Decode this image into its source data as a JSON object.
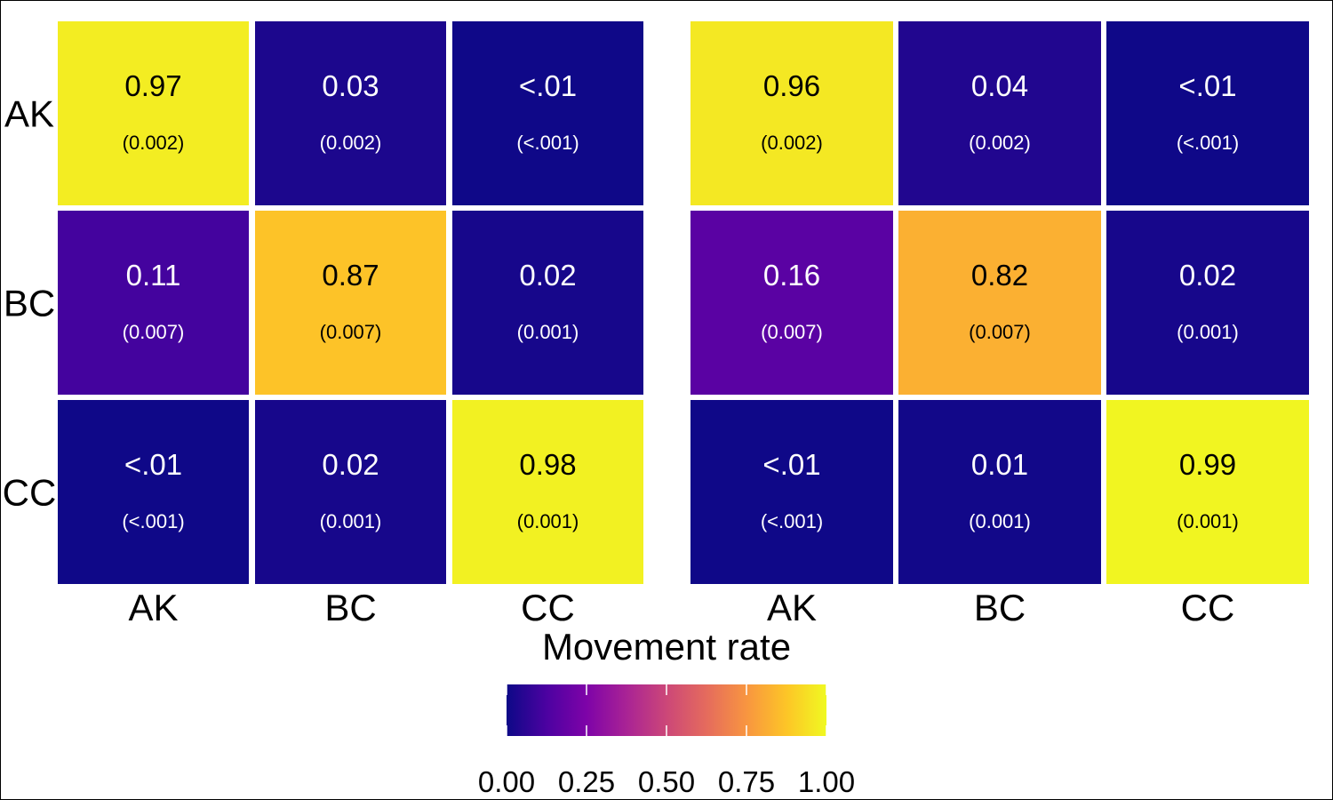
{
  "chart_data": {
    "type": "heatmap",
    "xlabel": "Movement rate",
    "row_labels": [
      "AK",
      "BC",
      "CC"
    ],
    "col_labels": [
      "AK",
      "BC",
      "CC"
    ],
    "panels": [
      {
        "values": [
          [
            0.97,
            0.03,
            0.004
          ],
          [
            0.11,
            0.87,
            0.02
          ],
          [
            0.004,
            0.02,
            0.98
          ]
        ],
        "value_labels": [
          [
            "0.97",
            "0.03",
            "<.01"
          ],
          [
            "0.11",
            "0.87",
            "0.02"
          ],
          [
            "<.01",
            "0.02",
            "0.98"
          ]
        ],
        "se_labels": [
          [
            "(0.002)",
            "(0.002)",
            "(<.001)"
          ],
          [
            "(0.007)",
            "(0.007)",
            "(0.001)"
          ],
          [
            "(<.001)",
            "(0.001)",
            "(0.001)"
          ]
        ]
      },
      {
        "values": [
          [
            0.96,
            0.04,
            0.004
          ],
          [
            0.16,
            0.82,
            0.02
          ],
          [
            0.004,
            0.01,
            0.99
          ]
        ],
        "value_labels": [
          [
            "0.96",
            "0.04",
            "<.01"
          ],
          [
            "0.16",
            "0.82",
            "0.02"
          ],
          [
            "<.01",
            "0.01",
            "0.99"
          ]
        ],
        "se_labels": [
          [
            "(0.002)",
            "(0.002)",
            "(<.001)"
          ],
          [
            "(0.007)",
            "(0.007)",
            "(0.001)"
          ],
          [
            "(<.001)",
            "(0.001)",
            "(0.001)"
          ]
        ]
      }
    ],
    "colorbar": {
      "range": [
        0,
        1
      ],
      "ticks": [
        0,
        0.25,
        0.5,
        0.75,
        1
      ],
      "tick_labels": [
        "0.00",
        "0.25",
        "0.50",
        "0.75",
        "1.00"
      ],
      "colormap": "plasma",
      "placement": "bottom"
    }
  }
}
